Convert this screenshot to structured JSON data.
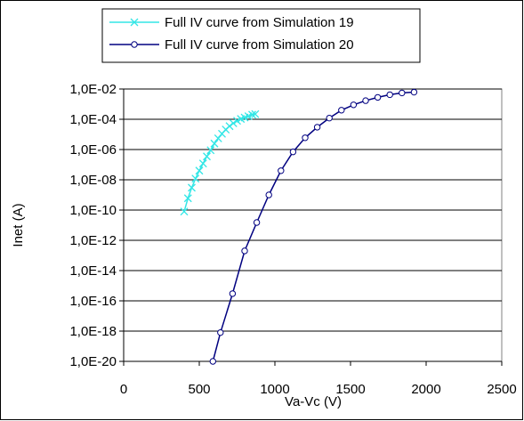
{
  "chart_data": {
    "type": "scatter",
    "title": "",
    "xlabel": "Va-Vc (V)",
    "ylabel": "Inet (A)",
    "xscale": "linear",
    "yscale": "log",
    "xlim": [
      0,
      2500
    ],
    "ylim": [
      1e-20,
      0.01
    ],
    "x_ticks": [
      0,
      500,
      1000,
      1500,
      2000,
      2500
    ],
    "y_ticks": [
      1e-20,
      1e-18,
      1e-16,
      1e-14,
      1e-12,
      1e-10,
      1e-08,
      1e-06,
      0.0001,
      0.01
    ],
    "x_tick_labels": [
      "0",
      "500",
      "1000",
      "1500",
      "2000",
      "2500"
    ],
    "y_tick_labels": [
      "1,0E-20",
      "1,0E-18",
      "1,0E-16",
      "1,0E-14",
      "1,0E-12",
      "1,0E-10",
      "1,0E-08",
      "1,0E-06",
      "1,0E-04",
      "1,0E-02"
    ],
    "grid": "horizontal major lines",
    "legend_position": "top",
    "series": [
      {
        "name": "Full IV curve from Simulation 19",
        "color": "#33e6e6",
        "marker": "x",
        "x": [
          400,
          425,
          450,
          475,
          500,
          525,
          550,
          575,
          600,
          625,
          650,
          675,
          700,
          725,
          750,
          775,
          800,
          825,
          850,
          870
        ],
        "y": [
          8e-11,
          6e-10,
          3e-09,
          1.2e-08,
          4e-08,
          1.2e-07,
          3.5e-07,
          9e-07,
          2.5e-06,
          5.5e-06,
          1.1e-05,
          2.1e-05,
          3.5e-05,
          5.5e-05,
          8e-05,
          0.000105,
          0.00013,
          0.00016,
          0.0002,
          0.00022
        ]
      },
      {
        "name": "Full IV curve from Simulation 20",
        "color": "#000080",
        "marker": "o",
        "x": [
          590,
          640,
          720,
          800,
          880,
          960,
          1040,
          1120,
          1200,
          1280,
          1360,
          1440,
          1520,
          1600,
          1680,
          1760,
          1840,
          1920
        ],
        "y": [
          1e-20,
          8e-19,
          3e-16,
          2e-13,
          1.5e-11,
          1e-09,
          4e-08,
          7e-07,
          6e-06,
          3e-05,
          0.00012,
          0.0004,
          0.0009,
          0.0017,
          0.0028,
          0.0042,
          0.0055,
          0.0062
        ]
      }
    ]
  }
}
